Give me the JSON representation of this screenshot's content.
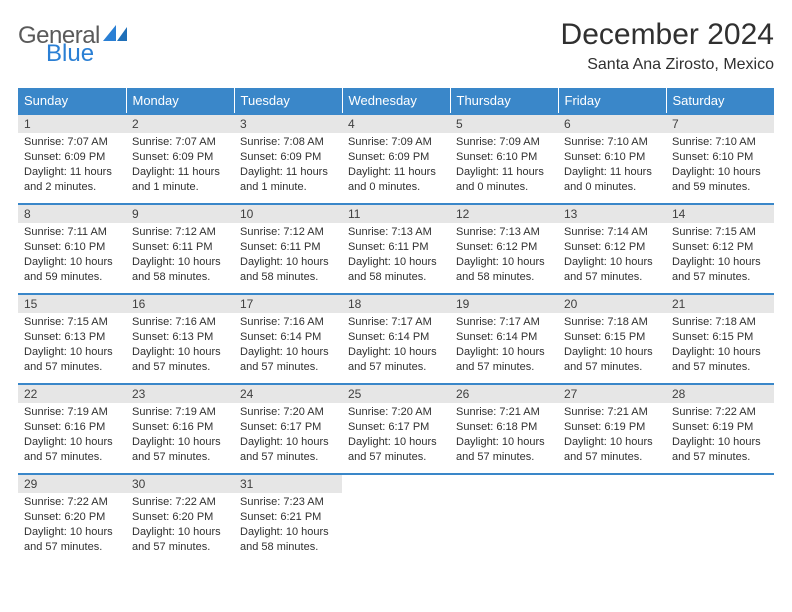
{
  "brand": {
    "word1": "General",
    "word2": "Blue",
    "word1_color": "#5a5a5a",
    "word2_color": "#2a7fd4"
  },
  "title": "December 2024",
  "location": "Santa Ana Zirosto, Mexico",
  "header_bg": "#3a87c9",
  "daynum_bg": "#e6e6e6",
  "columns": [
    "Sunday",
    "Monday",
    "Tuesday",
    "Wednesday",
    "Thursday",
    "Friday",
    "Saturday"
  ],
  "days": [
    {
      "n": "1",
      "sr": "7:07 AM",
      "ss": "6:09 PM",
      "dl": "11 hours and 2 minutes."
    },
    {
      "n": "2",
      "sr": "7:07 AM",
      "ss": "6:09 PM",
      "dl": "11 hours and 1 minute."
    },
    {
      "n": "3",
      "sr": "7:08 AM",
      "ss": "6:09 PM",
      "dl": "11 hours and 1 minute."
    },
    {
      "n": "4",
      "sr": "7:09 AM",
      "ss": "6:09 PM",
      "dl": "11 hours and 0 minutes."
    },
    {
      "n": "5",
      "sr": "7:09 AM",
      "ss": "6:10 PM",
      "dl": "11 hours and 0 minutes."
    },
    {
      "n": "6",
      "sr": "7:10 AM",
      "ss": "6:10 PM",
      "dl": "11 hours and 0 minutes."
    },
    {
      "n": "7",
      "sr": "7:10 AM",
      "ss": "6:10 PM",
      "dl": "10 hours and 59 minutes."
    },
    {
      "n": "8",
      "sr": "7:11 AM",
      "ss": "6:10 PM",
      "dl": "10 hours and 59 minutes."
    },
    {
      "n": "9",
      "sr": "7:12 AM",
      "ss": "6:11 PM",
      "dl": "10 hours and 58 minutes."
    },
    {
      "n": "10",
      "sr": "7:12 AM",
      "ss": "6:11 PM",
      "dl": "10 hours and 58 minutes."
    },
    {
      "n": "11",
      "sr": "7:13 AM",
      "ss": "6:11 PM",
      "dl": "10 hours and 58 minutes."
    },
    {
      "n": "12",
      "sr": "7:13 AM",
      "ss": "6:12 PM",
      "dl": "10 hours and 58 minutes."
    },
    {
      "n": "13",
      "sr": "7:14 AM",
      "ss": "6:12 PM",
      "dl": "10 hours and 57 minutes."
    },
    {
      "n": "14",
      "sr": "7:15 AM",
      "ss": "6:12 PM",
      "dl": "10 hours and 57 minutes."
    },
    {
      "n": "15",
      "sr": "7:15 AM",
      "ss": "6:13 PM",
      "dl": "10 hours and 57 minutes."
    },
    {
      "n": "16",
      "sr": "7:16 AM",
      "ss": "6:13 PM",
      "dl": "10 hours and 57 minutes."
    },
    {
      "n": "17",
      "sr": "7:16 AM",
      "ss": "6:14 PM",
      "dl": "10 hours and 57 minutes."
    },
    {
      "n": "18",
      "sr": "7:17 AM",
      "ss": "6:14 PM",
      "dl": "10 hours and 57 minutes."
    },
    {
      "n": "19",
      "sr": "7:17 AM",
      "ss": "6:14 PM",
      "dl": "10 hours and 57 minutes."
    },
    {
      "n": "20",
      "sr": "7:18 AM",
      "ss": "6:15 PM",
      "dl": "10 hours and 57 minutes."
    },
    {
      "n": "21",
      "sr": "7:18 AM",
      "ss": "6:15 PM",
      "dl": "10 hours and 57 minutes."
    },
    {
      "n": "22",
      "sr": "7:19 AM",
      "ss": "6:16 PM",
      "dl": "10 hours and 57 minutes."
    },
    {
      "n": "23",
      "sr": "7:19 AM",
      "ss": "6:16 PM",
      "dl": "10 hours and 57 minutes."
    },
    {
      "n": "24",
      "sr": "7:20 AM",
      "ss": "6:17 PM",
      "dl": "10 hours and 57 minutes."
    },
    {
      "n": "25",
      "sr": "7:20 AM",
      "ss": "6:17 PM",
      "dl": "10 hours and 57 minutes."
    },
    {
      "n": "26",
      "sr": "7:21 AM",
      "ss": "6:18 PM",
      "dl": "10 hours and 57 minutes."
    },
    {
      "n": "27",
      "sr": "7:21 AM",
      "ss": "6:19 PM",
      "dl": "10 hours and 57 minutes."
    },
    {
      "n": "28",
      "sr": "7:22 AM",
      "ss": "6:19 PM",
      "dl": "10 hours and 57 minutes."
    },
    {
      "n": "29",
      "sr": "7:22 AM",
      "ss": "6:20 PM",
      "dl": "10 hours and 57 minutes."
    },
    {
      "n": "30",
      "sr": "7:22 AM",
      "ss": "6:20 PM",
      "dl": "10 hours and 57 minutes."
    },
    {
      "n": "31",
      "sr": "7:23 AM",
      "ss": "6:21 PM",
      "dl": "10 hours and 58 minutes."
    }
  ],
  "labels": {
    "sunrise": "Sunrise:",
    "sunset": "Sunset:",
    "daylight": "Daylight:"
  }
}
